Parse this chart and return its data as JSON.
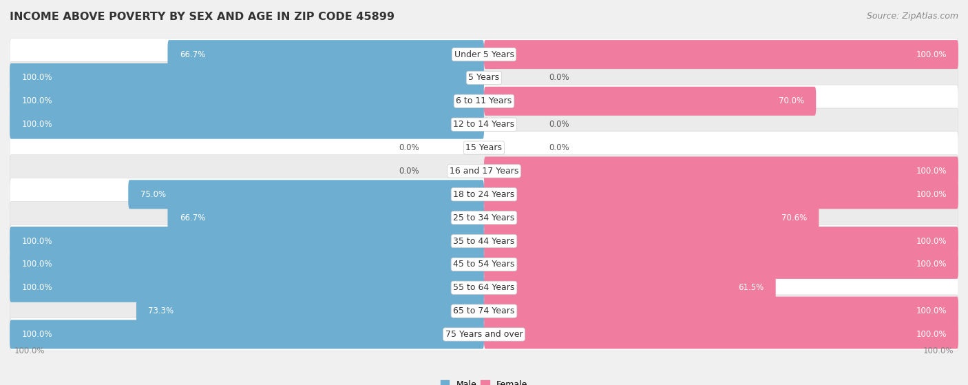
{
  "title": "INCOME ABOVE POVERTY BY SEX AND AGE IN ZIP CODE 45899",
  "source": "Source: ZipAtlas.com",
  "categories": [
    "Under 5 Years",
    "5 Years",
    "6 to 11 Years",
    "12 to 14 Years",
    "15 Years",
    "16 and 17 Years",
    "18 to 24 Years",
    "25 to 34 Years",
    "35 to 44 Years",
    "45 to 54 Years",
    "55 to 64 Years",
    "65 to 74 Years",
    "75 Years and over"
  ],
  "male_values": [
    66.7,
    100.0,
    100.0,
    100.0,
    0.0,
    0.0,
    75.0,
    66.7,
    100.0,
    100.0,
    100.0,
    73.3,
    100.0
  ],
  "female_values": [
    100.0,
    0.0,
    70.0,
    0.0,
    0.0,
    100.0,
    100.0,
    70.6,
    100.0,
    100.0,
    61.5,
    100.0,
    100.0
  ],
  "male_color": "#6eaed1",
  "female_color": "#f07ca0",
  "male_color_light": "#b8d9ed",
  "female_color_light": "#f9c0d3",
  "male_label": "Male",
  "female_label": "Female",
  "background_color": "#f0f0f0",
  "row_color_even": "#ffffff",
  "row_color_odd": "#ebebeb",
  "xlim": 100,
  "bar_height": 0.62,
  "title_fontsize": 11.5,
  "label_fontsize": 9,
  "value_fontsize": 8.5,
  "source_fontsize": 9
}
